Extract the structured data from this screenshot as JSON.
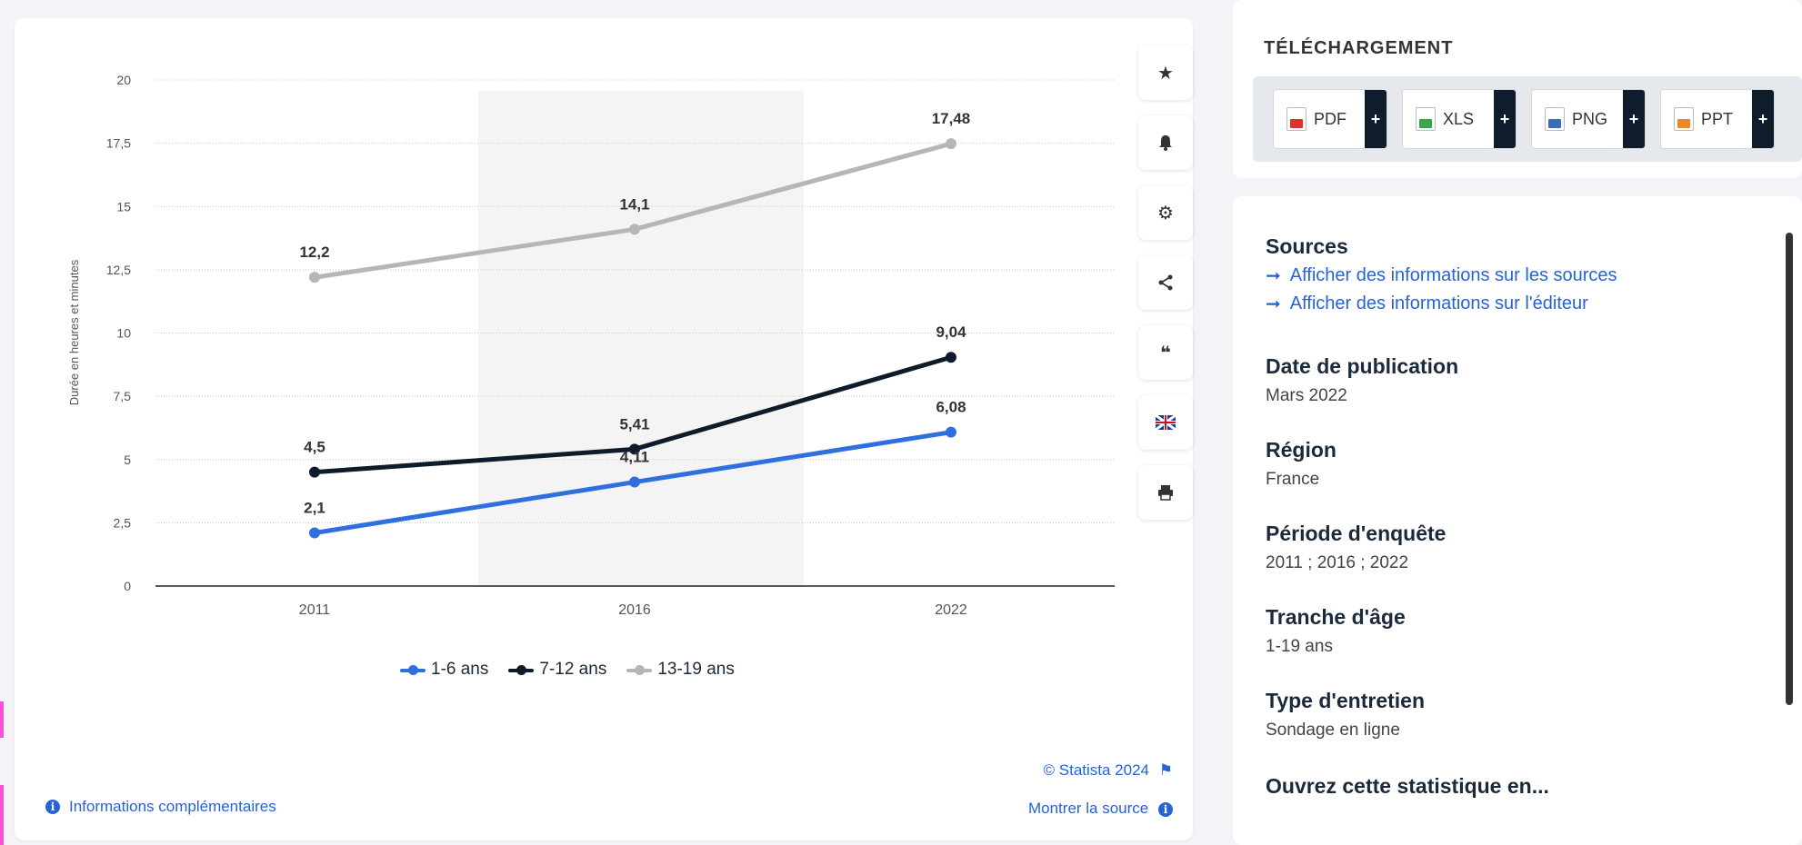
{
  "chart": {
    "credit": "© Statista 2024",
    "credit_flag_icon": "flag-icon",
    "show_source": "Montrer la source",
    "more_info": "Informations complémentaires"
  },
  "chart_data": {
    "type": "line",
    "title": "",
    "xlabel": "",
    "ylabel": "Durée en heures et minutes",
    "categories": [
      "2011",
      "2016",
      "2022"
    ],
    "ylim": [
      0,
      20
    ],
    "yticks": [
      "0",
      "2,5",
      "5",
      "7,5",
      "10",
      "12,5",
      "15",
      "17,5",
      "20"
    ],
    "grid": true,
    "legend_position": "bottom",
    "series": [
      {
        "name": "1-6 ans",
        "color": "#2f6fe0",
        "values": [
          2.1,
          4.11,
          6.08
        ],
        "labels": [
          "2,1",
          "4,11",
          "6,08"
        ]
      },
      {
        "name": "7-12 ans",
        "color": "#0e1b2b",
        "values": [
          4.5,
          5.41,
          9.04
        ],
        "labels": [
          "4,5",
          "5,41",
          "9,04"
        ]
      },
      {
        "name": "13-19 ans",
        "color": "#b6b6b6",
        "values": [
          12.2,
          14.1,
          17.48
        ],
        "labels": [
          "12,2",
          "14,1",
          "17,48"
        ]
      }
    ]
  },
  "toolbar": {
    "icons": [
      "star-icon",
      "bell-icon",
      "gear-icon",
      "share-icon",
      "quote-icon",
      "flag-uk-icon",
      "print-icon"
    ]
  },
  "download": {
    "title": "TÉLÉCHARGEMENT",
    "buttons": [
      {
        "label": "PDF",
        "plus": "+",
        "icon": "pdf-file-icon",
        "color": "#d9332b"
      },
      {
        "label": "XLS",
        "plus": "+",
        "icon": "xls-file-icon",
        "color": "#3aa548"
      },
      {
        "label": "PNG",
        "plus": "+",
        "icon": "png-file-icon",
        "color": "#3a6fb5"
      },
      {
        "label": "PPT",
        "plus": "+",
        "icon": "ppt-file-icon",
        "color": "#e88a2a"
      }
    ]
  },
  "info": {
    "sources": {
      "heading": "Sources",
      "links": [
        "Afficher des informations sur les sources",
        "Afficher des informations sur l'éditeur"
      ]
    },
    "fields": [
      {
        "heading": "Date de publication",
        "value": "Mars 2022"
      },
      {
        "heading": "Région",
        "value": "France"
      },
      {
        "heading": "Période d'enquête",
        "value": "2011 ; 2016 ; 2022"
      },
      {
        "heading": "Tranche d'âge",
        "value": "1-19 ans"
      },
      {
        "heading": "Type d'entretien",
        "value": "Sondage en ligne"
      }
    ],
    "open_in": "Ouvrez cette statistique en..."
  }
}
